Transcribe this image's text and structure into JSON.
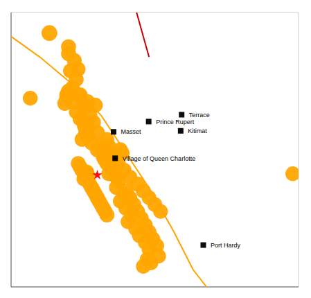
{
  "chart_data": {
    "type": "scatter",
    "xlim": [
      -137.5,
      -122.5
    ],
    "ylim": [
      49.5,
      57.5
    ],
    "xticks": [
      -136,
      -134,
      -132,
      -130,
      -128,
      -126,
      -124
    ],
    "yticks": [
      50,
      51,
      52,
      53,
      54,
      55,
      56,
      57
    ],
    "grid": true,
    "tick_labels": false,
    "series": [
      {
        "type": "line",
        "color": "#FFA500",
        "line_style": "solid",
        "x": [
          -137.5,
          -136.0,
          -134.5,
          -132.8,
          -131.5,
          -130.2,
          -129.0,
          -128.0,
          -127.3
        ],
        "y": [
          56.8,
          56.2,
          55.5,
          54.5,
          53.4,
          52.3,
          51.1,
          50.0,
          49.5
        ]
      },
      {
        "type": "line",
        "color": "#cc0000",
        "line_style": "solid",
        "x": [
          -130.95,
          -130.6,
          -130.3
        ],
        "y": [
          57.5,
          56.8,
          56.2
        ]
      },
      {
        "type": "scatter",
        "color": "#FFA500",
        "marker": "circle",
        "x": [
          -135.5,
          -134.5,
          -134.2,
          -134.5,
          -134.0,
          -134.4,
          -134.1,
          -134.5,
          -134.6,
          -134.3,
          -134.7,
          -134.6,
          -133.9,
          -134.3,
          -133.9,
          -133.7,
          -133.5,
          -133.4,
          -134.1,
          -133.6,
          -133.2,
          -133.6,
          -133.7,
          -133.6,
          -133.9,
          -133.1,
          -133.0,
          -133.8,
          -133.5,
          -133.3,
          -133.0,
          -132.8,
          -132.5,
          -132.4,
          -132.7,
          -132.3,
          -132.1,
          -132.5,
          -132.6,
          -132.2,
          -131.9,
          -131.8,
          -131.7,
          -132.4,
          -132.2,
          -132.0,
          -131.9,
          -132.0,
          -131.6,
          -133.6,
          -133.5,
          -133.55,
          -133.7,
          -133.65,
          -133.8,
          -133.9,
          -134.0,
          -133.5,
          -133.4,
          -133.3,
          -133.2,
          -133.1,
          -133.0,
          -132.9,
          -132.8,
          -132.7,
          -132.6,
          -132.5,
          -131.6,
          -131.8,
          -131.5,
          -131.3,
          -131.3,
          -131.2,
          -131.1,
          -131.5,
          -131.4,
          -131.0,
          -130.9,
          -130.8,
          -130.9,
          -130.7,
          -130.6,
          -130.5,
          -130.5,
          -130.3,
          -130.3,
          -130.3,
          -130.1,
          -130.0,
          -129.9,
          -129.7,
          -130.2,
          -130.4,
          -130.6,
          -129.8,
          -136.5,
          -122.8
        ],
        "y": [
          56.9,
          56.5,
          56.1,
          56.3,
          55.85,
          55.8,
          55.55,
          55.2,
          55.1,
          55.3,
          54.85,
          55.0,
          55.05,
          54.9,
          55.1,
          54.75,
          54.9,
          54.5,
          54.6,
          54.8,
          54.3,
          54.2,
          54.3,
          54.0,
          54.4,
          54.8,
          54.0,
          53.8,
          53.9,
          53.7,
          53.5,
          53.6,
          53.8,
          53.6,
          53.3,
          53.4,
          53.3,
          53.1,
          53.2,
          53.0,
          53.1,
          53.5,
          53.4,
          52.8,
          52.9,
          52.7,
          52.6,
          52.4,
          52.9,
          52.8,
          52.75,
          52.85,
          52.65,
          52.7,
          52.9,
          53.0,
          53.1,
          52.6,
          52.5,
          52.4,
          52.3,
          52.2,
          52.1,
          52.0,
          51.9,
          51.8,
          51.7,
          51.6,
          52.2,
          52.0,
          52.3,
          52.1,
          52.7,
          51.6,
          51.9,
          51.8,
          51.4,
          51.2,
          51.7,
          51.0,
          52.5,
          51.5,
          52.3,
          50.8,
          51.3,
          51.1,
          50.6,
          52.1,
          50.9,
          51.9,
          50.7,
          51.7,
          50.2,
          50.3,
          50.1,
          50.4,
          55.0,
          52.8
        ],
        "mag": [
          5.8,
          5.2,
          5.1,
          5.2,
          5.0,
          5.1,
          5.1,
          5.4,
          5.0,
          5.1,
          5.1,
          5.0,
          5.0,
          5.3,
          5.2,
          5.3,
          5.0,
          5.6,
          5.0,
          5.1,
          5.1,
          7.5,
          5.0,
          5.2,
          5.1,
          5.0,
          5.2,
          5.0,
          5.0,
          5.1,
          5.2,
          5.1,
          5.0,
          5.1,
          5.0,
          5.2,
          5.2,
          5.1,
          5.3,
          5.0,
          5.0,
          5.1,
          5.0,
          5.1,
          5.2,
          5.0,
          5.4,
          5.2,
          5.1,
          6.8,
          5.2,
          5.0,
          5.1,
          5.0,
          5.2,
          5.1,
          5.0,
          5.1,
          5.0,
          5.2,
          5.1,
          5.0,
          5.2,
          5.1,
          5.0,
          5.1,
          5.0,
          5.2,
          5.3,
          5.1,
          5.3,
          5.0,
          5.0,
          5.2,
          5.2,
          5.5,
          5.0,
          5.1,
          5.1,
          5.2,
          5.2,
          5.0,
          5.1,
          5.0,
          5.2,
          5.1,
          5.1,
          5.0,
          5.0,
          5.1,
          5.1,
          5.0,
          5.0,
          5.1,
          5.0,
          5.0,
          5.1,
          5.0
        ]
      },
      {
        "type": "scatter",
        "color": "#ff0000",
        "marker": "star",
        "x": [
          -133.0
        ],
        "y": [
          52.76
        ]
      },
      {
        "type": "scatter",
        "color": "#000000",
        "marker": "square",
        "x": [
          -128.6,
          -130.32,
          -128.65,
          -132.15,
          -132.07,
          -127.47
        ],
        "y": [
          54.52,
          54.32,
          54.05,
          54.02,
          53.25,
          50.72
        ],
        "labels": [
          "Terrace",
          "Prince Rupert",
          "Kitimat",
          "Masset",
          "Village of Queen Charlotte",
          "Port Hardy"
        ]
      }
    ]
  }
}
